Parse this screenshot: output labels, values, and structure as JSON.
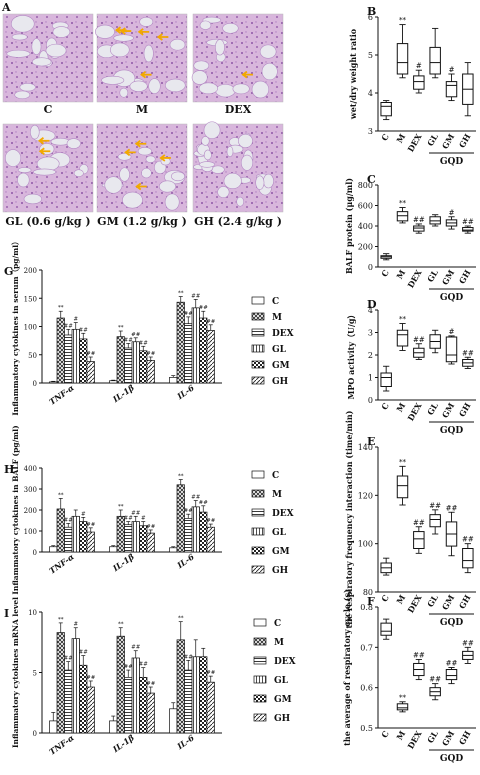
{
  "colors": {
    "tissue_pink": "#dcbfe0",
    "tissue_purple": "#a06bb3",
    "alveolus": "#e8e8ee",
    "arrow": "#f2a900"
  },
  "panels": {
    "A": {
      "letter": "A",
      "labels": [
        "C",
        "M",
        "DEX",
        "GL (0.6 g/kg )",
        "GM (1.2 g/kg )",
        "GH (2.4 g/kg )"
      ]
    },
    "B": {
      "letter": "B"
    },
    "C": {
      "letter": "C"
    },
    "D": {
      "letter": "D"
    },
    "E": {
      "letter": "E"
    },
    "F": {
      "letter": "F"
    },
    "G": {
      "letter": "G"
    },
    "H": {
      "letter": "H"
    },
    "I": {
      "letter": "I"
    }
  },
  "gqd_label": "GQD",
  "chart_data": [
    {
      "id": "B",
      "type": "box",
      "ylabel": "wet/dry weight ratio",
      "ylim": [
        3,
        6
      ],
      "yticks": [
        "3",
        "4",
        "5",
        "6"
      ],
      "categories": [
        "C",
        "M",
        "DEX",
        "GL",
        "GM",
        "GH"
      ],
      "boxes": [
        {
          "min": 3.3,
          "q1": 3.4,
          "median": 3.65,
          "q3": 3.75,
          "max": 3.8
        },
        {
          "min": 4.4,
          "q1": 4.5,
          "median": 4.8,
          "q3": 5.3,
          "max": 5.8
        },
        {
          "min": 4.0,
          "q1": 4.1,
          "median": 4.3,
          "q3": 4.45,
          "max": 4.6
        },
        {
          "min": 4.4,
          "q1": 4.5,
          "median": 4.8,
          "q3": 5.2,
          "max": 5.7
        },
        {
          "min": 3.8,
          "q1": 3.9,
          "median": 4.2,
          "q3": 4.3,
          "max": 4.5
        },
        {
          "min": 3.4,
          "q1": 3.7,
          "median": 4.1,
          "q3": 4.5,
          "max": 4.8
        }
      ],
      "marks": [
        "",
        "**",
        "#",
        "",
        "#",
        ""
      ]
    },
    {
      "id": "C",
      "type": "box",
      "ylabel": "BALF protein (μg/ml)",
      "ylim": [
        0,
        800
      ],
      "yticks": [
        "0",
        "200",
        "400",
        "600",
        "800"
      ],
      "categories": [
        "C",
        "M",
        "DEX",
        "GL",
        "GM",
        "GH"
      ],
      "boxes": [
        {
          "min": 70,
          "q1": 85,
          "median": 100,
          "q3": 110,
          "max": 130
        },
        {
          "min": 430,
          "q1": 450,
          "median": 500,
          "q3": 540,
          "max": 580
        },
        {
          "min": 330,
          "q1": 350,
          "median": 380,
          "q3": 400,
          "max": 420
        },
        {
          "min": 400,
          "q1": 420,
          "median": 450,
          "q3": 490,
          "max": 510
        },
        {
          "min": 370,
          "q1": 400,
          "median": 430,
          "q3": 460,
          "max": 490
        },
        {
          "min": 330,
          "q1": 350,
          "median": 360,
          "q3": 385,
          "max": 400
        }
      ],
      "marks": [
        "",
        "**",
        "##",
        "",
        "#",
        "##"
      ]
    },
    {
      "id": "D",
      "type": "box",
      "ylabel": "MPO activity（U/g）",
      "ylim": [
        0,
        4
      ],
      "yticks": [
        "0",
        "1",
        "2",
        "3",
        "4"
      ],
      "categories": [
        "C",
        "M",
        "DEX",
        "GL",
        "GM",
        "GH"
      ],
      "boxes": [
        {
          "min": 0.4,
          "q1": 0.6,
          "median": 1.0,
          "q3": 1.2,
          "max": 1.5
        },
        {
          "min": 2.2,
          "q1": 2.4,
          "median": 2.9,
          "q3": 3.1,
          "max": 3.4
        },
        {
          "min": 1.8,
          "q1": 1.9,
          "median": 2.1,
          "q3": 2.3,
          "max": 2.5
        },
        {
          "min": 2.1,
          "q1": 2.3,
          "median": 2.6,
          "q3": 2.9,
          "max": 3.1
        },
        {
          "min": 1.6,
          "q1": 1.7,
          "median": 2.0,
          "q3": 2.8,
          "max": 2.85
        },
        {
          "min": 1.4,
          "q1": 1.5,
          "median": 1.65,
          "q3": 1.8,
          "max": 1.9
        }
      ],
      "marks": [
        "",
        "**",
        "##",
        "",
        "#",
        "##"
      ]
    },
    {
      "id": "E",
      "type": "box",
      "ylabel": "the respiratory frequency interaction (time/min)",
      "ylim": [
        80,
        140
      ],
      "yticks": [
        "80",
        "100",
        "120",
        "140"
      ],
      "categories": [
        "C",
        "M",
        "DEX",
        "GL",
        "GM",
        "GH"
      ],
      "boxes": [
        {
          "min": 87,
          "q1": 88,
          "median": 90,
          "q3": 92,
          "max": 94
        },
        {
          "min": 116,
          "q1": 119,
          "median": 124,
          "q3": 128,
          "max": 132
        },
        {
          "min": 96,
          "q1": 98,
          "median": 102,
          "q3": 105,
          "max": 107
        },
        {
          "min": 104,
          "q1": 107,
          "median": 110,
          "q3": 112,
          "max": 114
        },
        {
          "min": 95,
          "q1": 99,
          "median": 104,
          "q3": 109,
          "max": 113
        },
        {
          "min": 88,
          "q1": 90,
          "median": 93,
          "q3": 98,
          "max": 100
        }
      ],
      "marks": [
        "",
        "**",
        "##",
        "##",
        "##",
        "##"
      ]
    },
    {
      "id": "F",
      "type": "box",
      "ylabel": "the average of respiratory cycle (s)",
      "ylim": [
        0.5,
        0.8
      ],
      "yticks": [
        "0.5",
        "0.6",
        "0.7",
        "0.8"
      ],
      "categories": [
        "C",
        "M",
        "DEX",
        "GL",
        "GM",
        "GH"
      ],
      "boxes": [
        {
          "min": 0.72,
          "q1": 0.73,
          "median": 0.74,
          "q3": 0.76,
          "max": 0.77
        },
        {
          "min": 0.54,
          "q1": 0.545,
          "median": 0.55,
          "q3": 0.56,
          "max": 0.565
        },
        {
          "min": 0.62,
          "q1": 0.63,
          "median": 0.645,
          "q3": 0.66,
          "max": 0.67
        },
        {
          "min": 0.57,
          "q1": 0.58,
          "median": 0.59,
          "q3": 0.6,
          "max": 0.61
        },
        {
          "min": 0.61,
          "q1": 0.62,
          "median": 0.63,
          "q3": 0.645,
          "max": 0.65
        },
        {
          "min": 0.66,
          "q1": 0.67,
          "median": 0.68,
          "q3": 0.69,
          "max": 0.7
        }
      ],
      "marks": [
        "",
        "**",
        "##",
        "##",
        "##",
        "##"
      ]
    },
    {
      "id": "G",
      "type": "bar",
      "ylabel": "Inflammatory cytokines in serum（pg/ml）",
      "ylim": [
        0,
        200
      ],
      "yticks": [
        "0",
        "50",
        "100",
        "150",
        "200"
      ],
      "categories": [
        "TNF-α",
        "IL-1β",
        "IL-6"
      ],
      "series": [
        {
          "name": "C",
          "values": [
            2,
            4,
            10
          ],
          "err": [
            1,
            1,
            3
          ]
        },
        {
          "name": "M",
          "values": [
            115,
            82,
            143
          ],
          "err": [
            12,
            10,
            10
          ]
        },
        {
          "name": "DEX",
          "values": [
            85,
            62,
            105
          ],
          "err": [
            10,
            8,
            12
          ]
        },
        {
          "name": "GL",
          "values": [
            95,
            73,
            133
          ],
          "err": [
            12,
            7,
            15
          ]
        },
        {
          "name": "GM",
          "values": [
            78,
            57,
            115
          ],
          "err": [
            10,
            8,
            12
          ]
        },
        {
          "name": "GH",
          "values": [
            38,
            40,
            93
          ],
          "err": [
            8,
            6,
            10
          ]
        }
      ],
      "marks": [
        [
          "",
          "**",
          "##",
          "#",
          "##",
          "##"
        ],
        [
          "",
          "**",
          "##",
          "##",
          "##",
          "##"
        ],
        [
          "",
          "**",
          "##",
          "##",
          "##",
          "##"
        ]
      ]
    },
    {
      "id": "H",
      "type": "bar",
      "ylabel": "Inflammatory cytokines in BALF (pg/ml)",
      "ylim": [
        0,
        400
      ],
      "yticks": [
        "0",
        "100",
        "200",
        "300",
        "400"
      ],
      "categories": [
        "TNF-α",
        "IL-1β",
        "IL-6"
      ],
      "series": [
        {
          "name": "C",
          "values": [
            25,
            25,
            20
          ],
          "err": [
            5,
            5,
            5
          ]
        },
        {
          "name": "M",
          "values": [
            205,
            170,
            320
          ],
          "err": [
            50,
            30,
            25
          ]
        },
        {
          "name": "DEX",
          "values": [
            118,
            130,
            160
          ],
          "err": [
            18,
            15,
            20
          ]
        },
        {
          "name": "GL",
          "values": [
            170,
            145,
            215
          ],
          "err": [
            30,
            25,
            30
          ]
        },
        {
          "name": "GM",
          "values": [
            145,
            125,
            190
          ],
          "err": [
            20,
            20,
            30
          ]
        },
        {
          "name": "GH",
          "values": [
            95,
            90,
            118
          ],
          "err": [
            20,
            15,
            15
          ]
        }
      ],
      "marks": [
        [
          "",
          "**",
          "##",
          "",
          "#",
          "##"
        ],
        [
          "",
          "**",
          "##",
          "##",
          "#",
          "##"
        ],
        [
          "",
          "**",
          "##",
          "##",
          "##",
          "##"
        ]
      ]
    },
    {
      "id": "I",
      "type": "bar",
      "ylabel": "Inflammatory cytokines mRNA level",
      "ylim": [
        0,
        10
      ],
      "yticks": [
        "0",
        "5",
        "10"
      ],
      "categories": [
        "TNF-α",
        "IL-1β",
        "IL-6"
      ],
      "series": [
        {
          "name": "C",
          "values": [
            1.0,
            1.0,
            2.0
          ],
          "err": [
            0.7,
            0.4,
            0.5
          ]
        },
        {
          "name": "M",
          "values": [
            8.3,
            8.0,
            7.7
          ],
          "err": [
            0.8,
            0.7,
            1.5
          ]
        },
        {
          "name": "DEX",
          "values": [
            5.2,
            4.6,
            5.2
          ],
          "err": [
            0.7,
            0.6,
            0.8
          ]
        },
        {
          "name": "GL",
          "values": [
            7.8,
            6.2,
            6.3
          ],
          "err": [
            0.9,
            0.6,
            1.4
          ]
        },
        {
          "name": "GM",
          "values": [
            5.6,
            4.6,
            6.3
          ],
          "err": [
            0.8,
            0.8,
            0.7
          ]
        },
        {
          "name": "GH",
          "values": [
            3.8,
            3.3,
            4.2
          ],
          "err": [
            0.5,
            0.5,
            0.5
          ]
        }
      ],
      "marks": [
        [
          "",
          "**",
          "##",
          "#",
          "##",
          "##"
        ],
        [
          "",
          "**",
          "##",
          "##",
          "##",
          "##"
        ],
        [
          "",
          "**",
          "##",
          "",
          "",
          "##"
        ]
      ]
    }
  ]
}
